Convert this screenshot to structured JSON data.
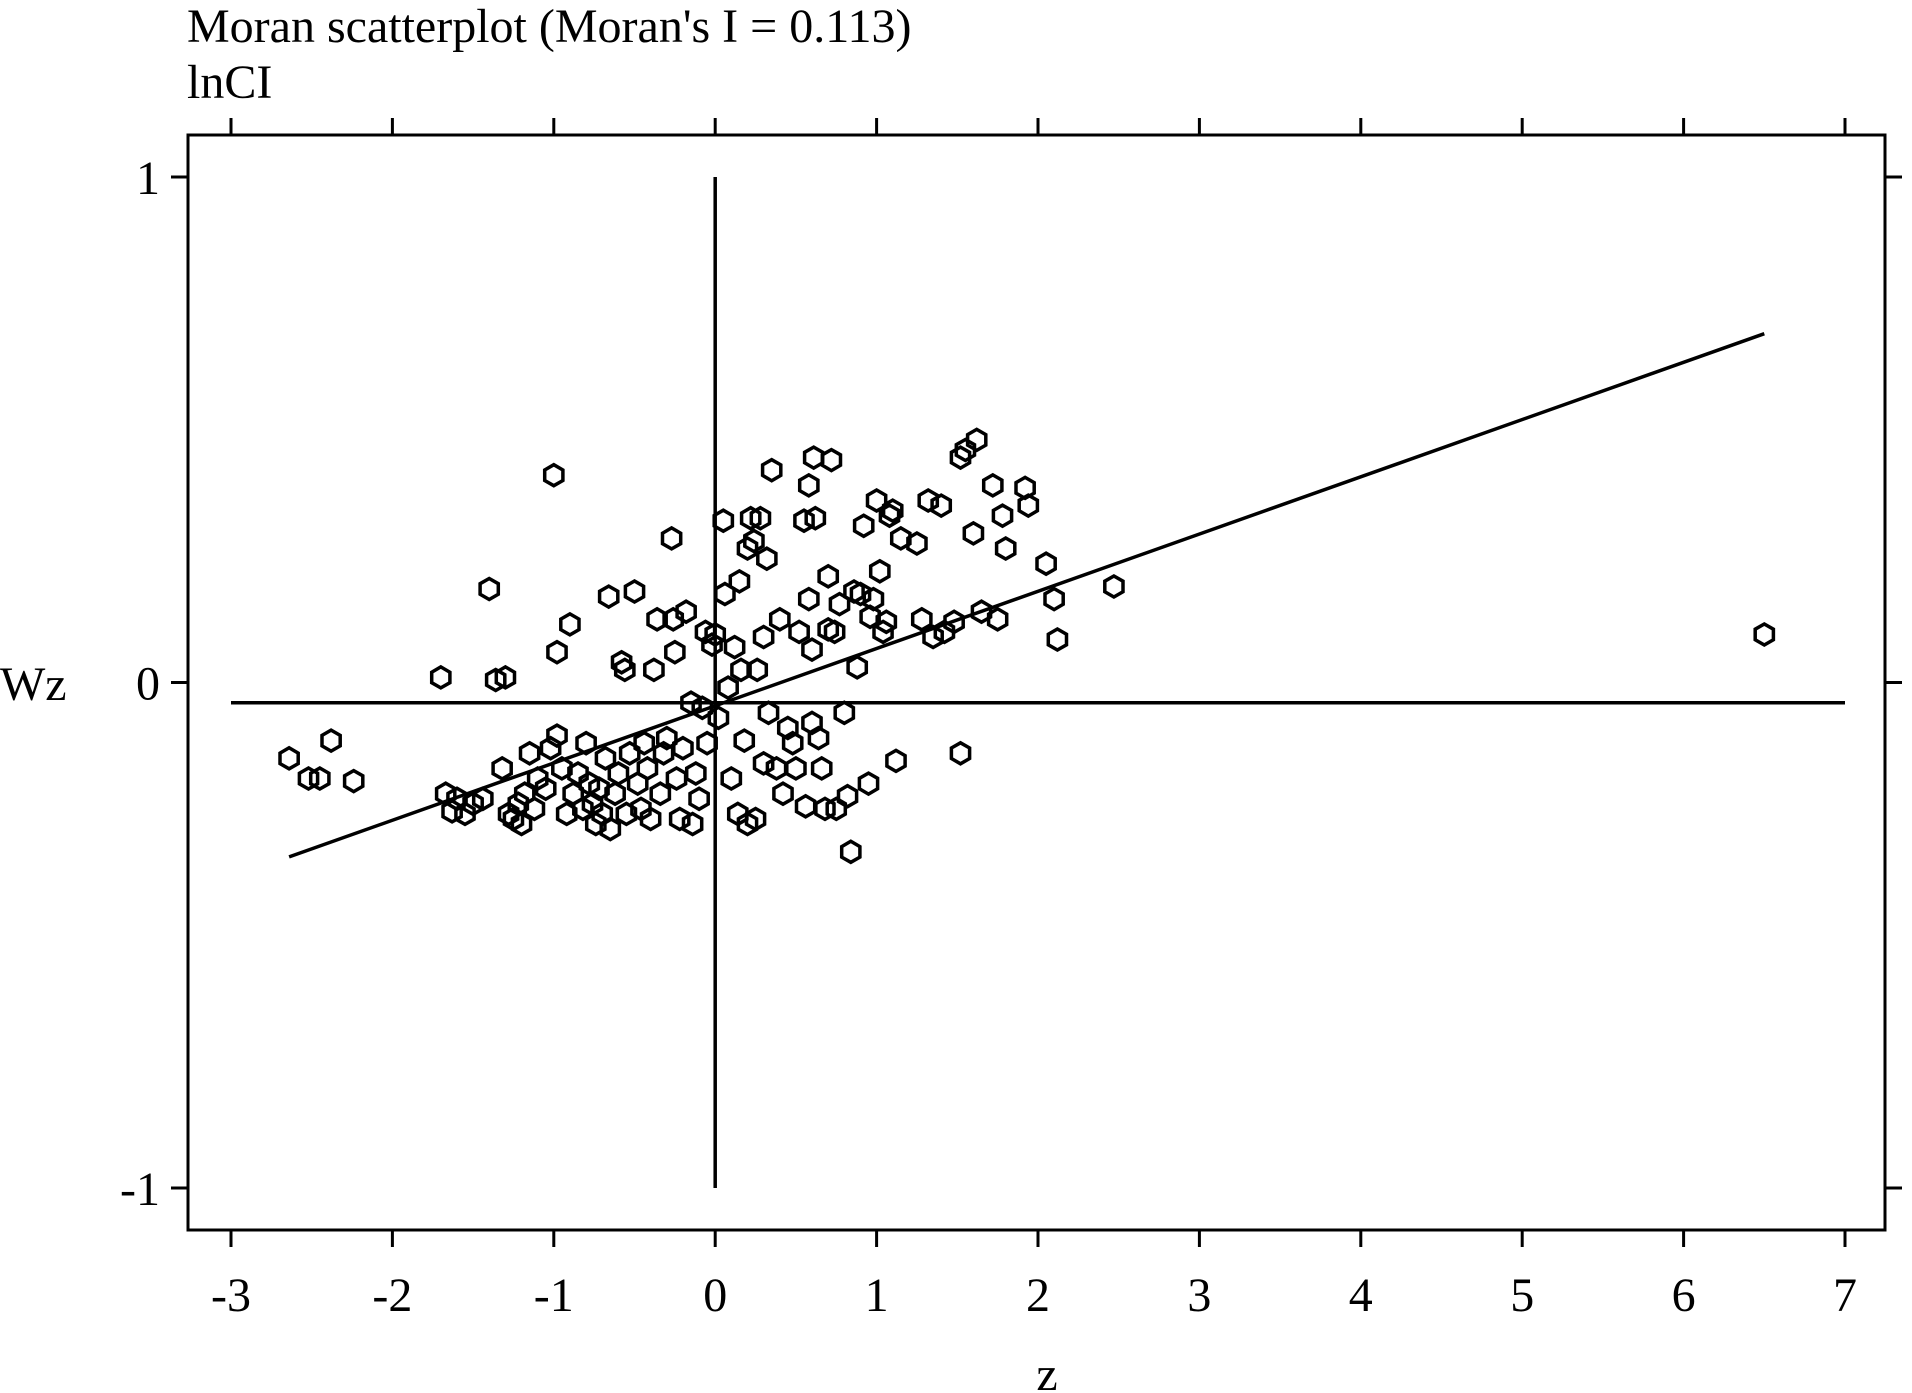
{
  "chart_data": {
    "type": "scatter",
    "title": "Moran scatterplot (Moran's I = 0.113)",
    "subtitle": "lnCI",
    "xlabel": "z",
    "ylabel": "Wz",
    "xlim": [
      -3,
      7
    ],
    "ylim": [
      -1,
      1
    ],
    "xticks": [
      -3,
      -2,
      -1,
      0,
      1,
      2,
      3,
      4,
      5,
      6,
      7
    ],
    "yticks": [
      -1,
      0,
      1
    ],
    "xtick_labels": [
      "-3",
      "-2",
      "-1",
      "0",
      "1",
      "2",
      "3",
      "4",
      "5",
      "6",
      "7"
    ],
    "ytick_labels": [
      "-1",
      "0",
      "1"
    ],
    "grid": false,
    "legend": null,
    "reference_lines": {
      "horizontal_y": -0.04,
      "vertical_x": 0
    },
    "fit_line": {
      "x1": -2.64,
      "y1": -0.345,
      "x2": 6.5,
      "y2": 0.69
    },
    "points": [
      [
        -2.64,
        -0.15
      ],
      [
        -2.52,
        -0.19
      ],
      [
        -2.45,
        -0.19
      ],
      [
        -2.38,
        -0.115
      ],
      [
        -2.24,
        -0.195
      ],
      [
        -1.7,
        0.01
      ],
      [
        -1.67,
        -0.22
      ],
      [
        -1.63,
        -0.255
      ],
      [
        -1.6,
        -0.23
      ],
      [
        -1.55,
        -0.26
      ],
      [
        -1.5,
        -0.24
      ],
      [
        -1.44,
        -0.23
      ],
      [
        -1.4,
        0.185
      ],
      [
        -1.36,
        0.005
      ],
      [
        -1.3,
        0.01
      ],
      [
        -1.32,
        -0.17
      ],
      [
        -1.28,
        -0.26
      ],
      [
        -1.25,
        -0.27
      ],
      [
        -1.22,
        -0.24
      ],
      [
        -1.2,
        -0.28
      ],
      [
        -1.18,
        -0.22
      ],
      [
        -1.15,
        -0.14
      ],
      [
        -1.12,
        -0.25
      ],
      [
        -1.1,
        -0.19
      ],
      [
        -1.05,
        -0.21
      ],
      [
        -1.02,
        -0.13
      ],
      [
        -1.0,
        0.41
      ],
      [
        -0.98,
        -0.105
      ],
      [
        -0.95,
        -0.17
      ],
      [
        -0.92,
        -0.26
      ],
      [
        -0.98,
        0.06
      ],
      [
        -0.9,
        0.115
      ],
      [
        -0.88,
        -0.22
      ],
      [
        -0.85,
        -0.18
      ],
      [
        -0.82,
        -0.25
      ],
      [
        -0.8,
        -0.12
      ],
      [
        -0.78,
        -0.2
      ],
      [
        -0.76,
        -0.24
      ],
      [
        -0.74,
        -0.28
      ],
      [
        -0.72,
        -0.21
      ],
      [
        -0.7,
        -0.26
      ],
      [
        -0.68,
        -0.15
      ],
      [
        -0.66,
        0.17
      ],
      [
        -0.65,
        -0.29
      ],
      [
        -0.62,
        -0.22
      ],
      [
        -0.6,
        -0.18
      ],
      [
        -0.58,
        0.04
      ],
      [
        -0.56,
        0.025
      ],
      [
        -0.55,
        -0.26
      ],
      [
        -0.53,
        -0.14
      ],
      [
        -0.5,
        0.18
      ],
      [
        -0.48,
        -0.2
      ],
      [
        -0.46,
        -0.25
      ],
      [
        -0.44,
        -0.12
      ],
      [
        -0.42,
        -0.17
      ],
      [
        -0.4,
        -0.27
      ],
      [
        -0.38,
        0.025
      ],
      [
        -0.36,
        0.125
      ],
      [
        -0.34,
        -0.22
      ],
      [
        -0.32,
        -0.14
      ],
      [
        -0.3,
        -0.11
      ],
      [
        -0.27,
        0.285
      ],
      [
        -0.26,
        0.125
      ],
      [
        -0.25,
        0.06
      ],
      [
        -0.24,
        -0.19
      ],
      [
        -0.22,
        -0.27
      ],
      [
        -0.2,
        -0.13
      ],
      [
        -0.18,
        0.14
      ],
      [
        -0.15,
        -0.04
      ],
      [
        -0.14,
        -0.28
      ],
      [
        -0.12,
        -0.18
      ],
      [
        -0.1,
        -0.23
      ],
      [
        -0.08,
        -0.05
      ],
      [
        -0.06,
        0.1
      ],
      [
        -0.05,
        -0.12
      ],
      [
        -0.02,
        0.075
      ],
      [
        0.0,
        0.095
      ],
      [
        0.02,
        -0.07
      ],
      [
        0.05,
        0.32
      ],
      [
        0.06,
        0.175
      ],
      [
        0.08,
        -0.01
      ],
      [
        0.1,
        -0.19
      ],
      [
        0.12,
        0.07
      ],
      [
        0.14,
        -0.26
      ],
      [
        0.15,
        0.2
      ],
      [
        0.16,
        0.025
      ],
      [
        0.18,
        -0.115
      ],
      [
        0.2,
        0.265
      ],
      [
        0.2,
        -0.28
      ],
      [
        0.22,
        0.325
      ],
      [
        0.24,
        0.28
      ],
      [
        0.25,
        -0.27
      ],
      [
        0.26,
        0.025
      ],
      [
        0.28,
        0.325
      ],
      [
        0.3,
        0.09
      ],
      [
        0.3,
        -0.16
      ],
      [
        0.32,
        0.245
      ],
      [
        0.33,
        -0.06
      ],
      [
        0.35,
        0.42
      ],
      [
        0.38,
        -0.17
      ],
      [
        0.4,
        0.125
      ],
      [
        0.42,
        -0.22
      ],
      [
        0.45,
        -0.09
      ],
      [
        0.48,
        -0.12
      ],
      [
        0.5,
        -0.17
      ],
      [
        0.52,
        0.1
      ],
      [
        0.55,
        0.32
      ],
      [
        0.56,
        -0.245
      ],
      [
        0.58,
        0.165
      ],
      [
        0.58,
        0.39
      ],
      [
        0.6,
        0.065
      ],
      [
        0.6,
        -0.08
      ],
      [
        0.61,
        0.445
      ],
      [
        0.62,
        0.325
      ],
      [
        0.64,
        -0.11
      ],
      [
        0.66,
        -0.17
      ],
      [
        0.68,
        -0.25
      ],
      [
        0.7,
        0.105
      ],
      [
        0.7,
        0.21
      ],
      [
        0.72,
        0.44
      ],
      [
        0.74,
        0.1
      ],
      [
        0.75,
        -0.25
      ],
      [
        0.77,
        0.155
      ],
      [
        0.8,
        -0.06
      ],
      [
        0.82,
        -0.225
      ],
      [
        0.84,
        -0.335
      ],
      [
        0.86,
        0.18
      ],
      [
        0.88,
        0.03
      ],
      [
        0.9,
        0.175
      ],
      [
        0.92,
        0.31
      ],
      [
        0.95,
        -0.2
      ],
      [
        0.96,
        0.13
      ],
      [
        0.98,
        0.165
      ],
      [
        1.0,
        0.36
      ],
      [
        1.02,
        0.22
      ],
      [
        1.04,
        0.1
      ],
      [
        1.06,
        0.12
      ],
      [
        1.08,
        0.33
      ],
      [
        1.1,
        0.34
      ],
      [
        1.12,
        -0.155
      ],
      [
        1.15,
        0.285
      ],
      [
        1.25,
        0.275
      ],
      [
        1.28,
        0.125
      ],
      [
        1.32,
        0.36
      ],
      [
        1.35,
        0.09
      ],
      [
        1.4,
        0.35
      ],
      [
        1.42,
        0.1
      ],
      [
        1.48,
        0.12
      ],
      [
        1.52,
        -0.14
      ],
      [
        1.52,
        0.445
      ],
      [
        1.55,
        0.46
      ],
      [
        1.6,
        0.295
      ],
      [
        1.62,
        0.48
      ],
      [
        1.65,
        0.14
      ],
      [
        1.72,
        0.39
      ],
      [
        1.75,
        0.125
      ],
      [
        1.78,
        0.33
      ],
      [
        1.8,
        0.265
      ],
      [
        1.92,
        0.385
      ],
      [
        1.94,
        0.35
      ],
      [
        2.05,
        0.235
      ],
      [
        2.1,
        0.165
      ],
      [
        2.12,
        0.085
      ],
      [
        2.47,
        0.19
      ],
      [
        6.5,
        0.095
      ]
    ]
  }
}
